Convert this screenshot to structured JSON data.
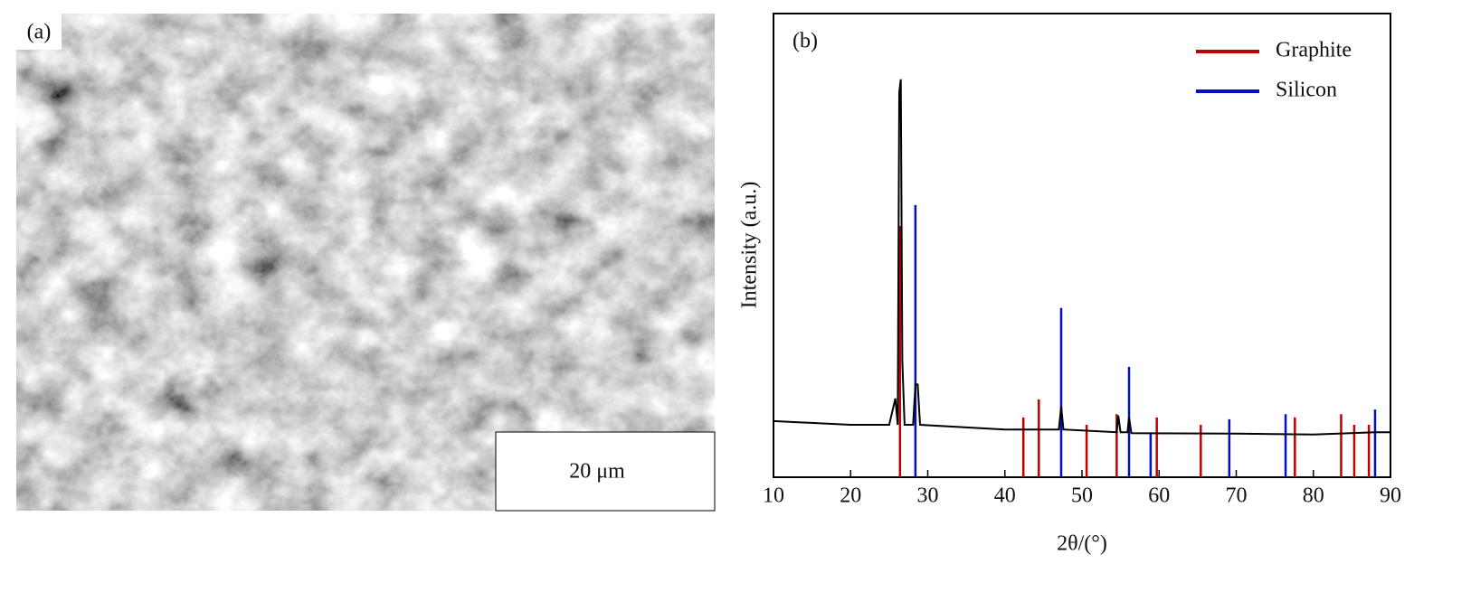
{
  "panel_a": {
    "label": "(a)",
    "scale_bar": "20 μm"
  },
  "chart_data": {
    "type": "xrd",
    "panel_label": "(b)",
    "x_label": "2θ/(°)",
    "y_label": "Intensity (a.u.)",
    "xlim": [
      10,
      90
    ],
    "xticks": [
      10,
      20,
      30,
      40,
      50,
      60,
      70,
      80,
      90
    ],
    "ylim": [
      0,
      100
    ],
    "legend": "upper right",
    "pattern": {
      "color": "#000000",
      "x": [
        10,
        20,
        25,
        25.8,
        26.1,
        26.3,
        26.5,
        26.7,
        27,
        28.1,
        28.4,
        28.7,
        29,
        40,
        47,
        47.3,
        47.6,
        54.5,
        54.7,
        55,
        55.9,
        56.1,
        56.4,
        70,
        80,
        88,
        90
      ],
      "values": [
        12.1,
        11.3,
        11.3,
        17,
        11.3,
        83,
        85.8,
        25,
        11.3,
        11.3,
        20,
        20,
        11.3,
        10.3,
        10.3,
        15.2,
        10.3,
        9.7,
        13.3,
        9.7,
        9.7,
        12.9,
        9.5,
        9.4,
        9.2,
        9.7,
        9.7
      ]
    },
    "series": [
      {
        "name": "Graphite",
        "color": "#c00000",
        "x": [
          26.4,
          42.4,
          44.4,
          50.6,
          54.5,
          59.7,
          65.4,
          77.6,
          83.6,
          85.3,
          87.2
        ],
        "values": [
          54.2,
          12.9,
          16.8,
          11.3,
          13.6,
          12.9,
          11.3,
          12.9,
          13.6,
          11.3,
          11.3
        ]
      },
      {
        "name": "Silicon",
        "color": "#0010c0",
        "x": [
          28.4,
          47.3,
          56.1,
          58.9,
          69.1,
          76.4,
          88.0
        ],
        "values": [
          58.7,
          36.5,
          23.8,
          9.4,
          12.5,
          13.6,
          14.6
        ]
      }
    ]
  }
}
